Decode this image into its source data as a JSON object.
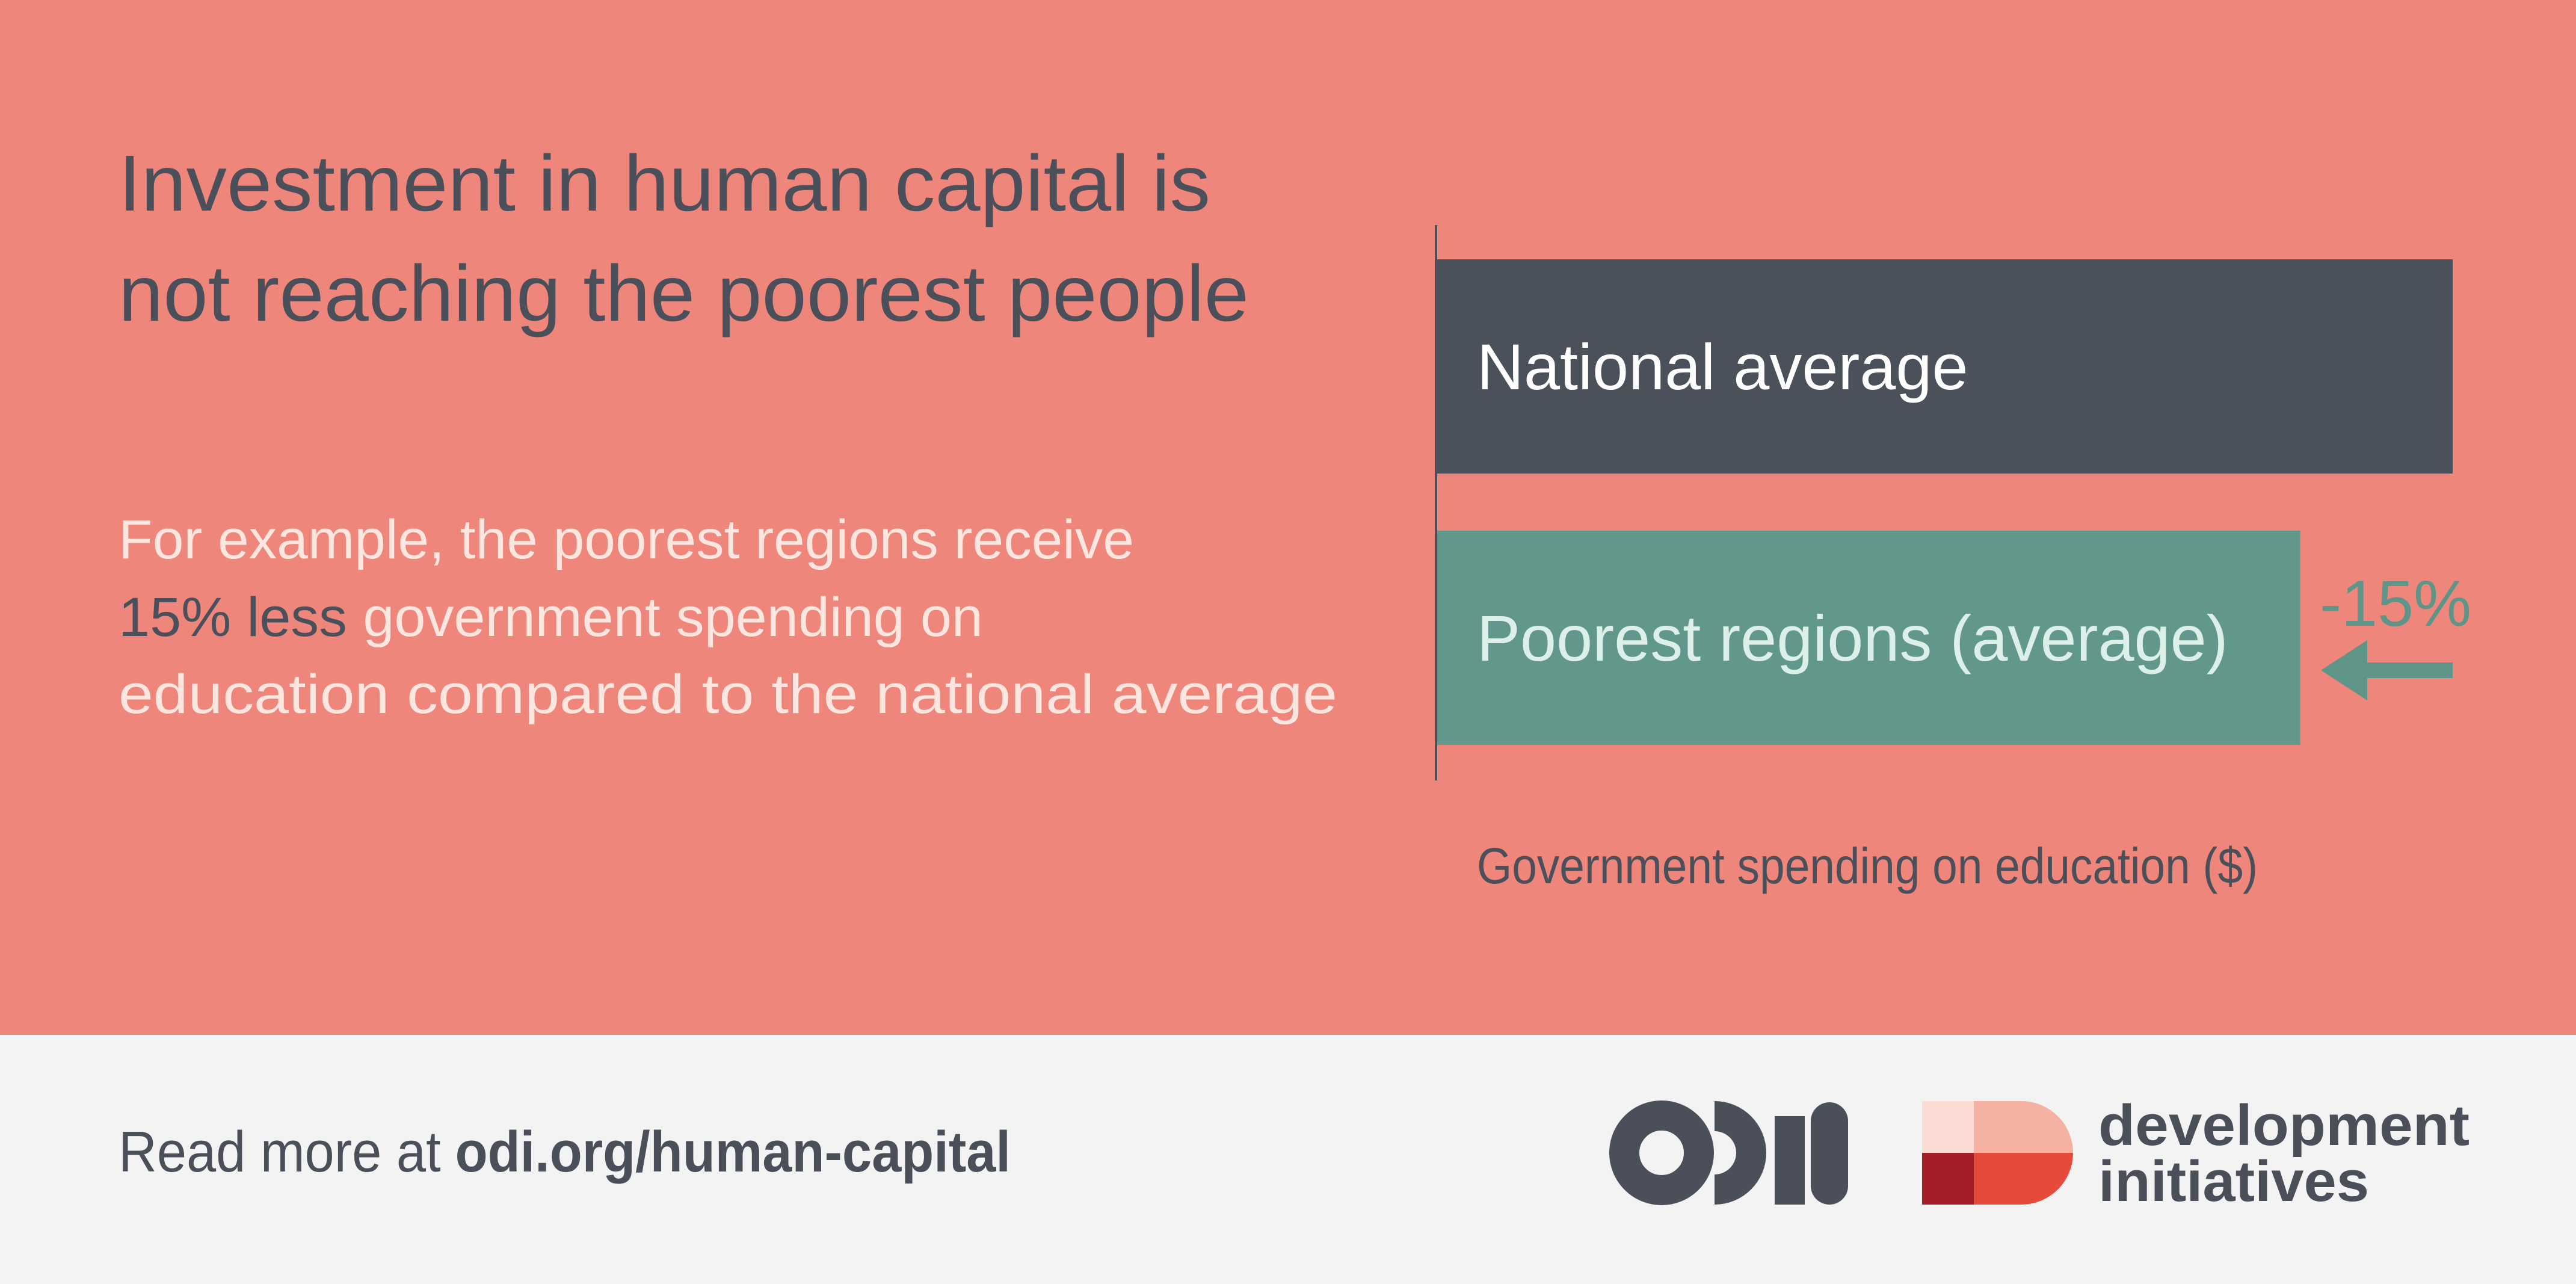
{
  "headline": [
    "Investment in human capital is",
    "not reaching the poorest people"
  ],
  "description": [
    [
      "For example, the poorest regions receive"
    ],
    [
      "15% less",
      "government spending on"
    ],
    [
      "education compared to the national average"
    ]
  ],
  "footer": {
    "prefix": "Read more at",
    "link": "odi.org/human-capital"
  },
  "partner_logo": [
    "development",
    "initiatives"
  ],
  "chart_data": {
    "type": "bar",
    "orientation": "horizontal",
    "categories": [
      "National average",
      "Poorest regions (average)"
    ],
    "values": [
      100,
      85
    ],
    "colors": [
      "#4a515b",
      "#62988b"
    ],
    "xlim": [
      0,
      100
    ],
    "xlabel": "Government spending on education ($)",
    "annotation": "-15%"
  }
}
